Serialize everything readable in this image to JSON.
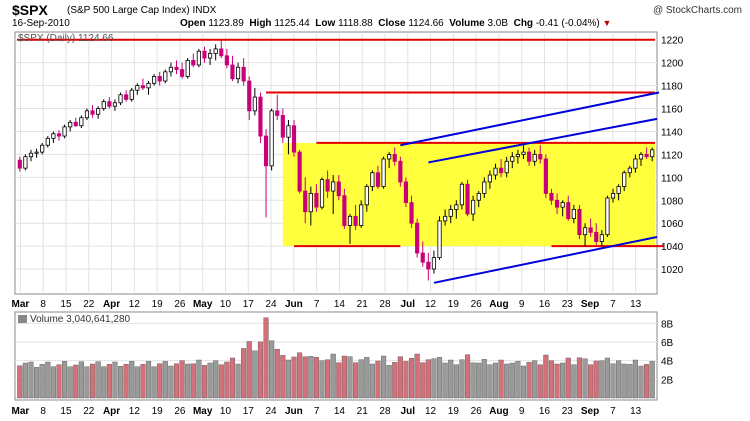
{
  "header": {
    "symbol": "$SPX",
    "name": "(S&P 500 Large Cap Index)",
    "exchange": "INDX",
    "date": "16-Sep-2010",
    "watermark": "@ StockCharts.com",
    "open_label": "Open",
    "open": "1123.89",
    "high_label": "High",
    "high": "1125.44",
    "low_label": "Low",
    "low": "1118.88",
    "close_label": "Close",
    "close": "1124.66",
    "volume_label": "Volume",
    "volume": "3.0B",
    "chg_label": "Chg",
    "chg": "-0.41 (-0.04%)",
    "chg_icon": "down-triangle-icon"
  },
  "chart_data": [
    {
      "type": "candlestick",
      "legend": "$SPX (Daily) 1124.66",
      "ylim": [
        1000,
        1225
      ],
      "yticks": [
        1020,
        1040,
        1060,
        1080,
        1100,
        1120,
        1140,
        1160,
        1180,
        1200,
        1220
      ],
      "xticks": [
        "Mar",
        "8",
        "15",
        "22",
        "Apr",
        "12",
        "19",
        "26",
        "May",
        "10",
        "17",
        "24",
        "Jun",
        "7",
        "14",
        "21",
        "28",
        "Jul",
        "12",
        "19",
        "26",
        "Aug",
        "9",
        "16",
        "23",
        "Sep",
        "7",
        "13"
      ],
      "ohlc": [
        [
          1115,
          1118,
          1105,
          1108
        ],
        [
          1108,
          1120,
          1106,
          1118
        ],
        [
          1118,
          1124,
          1114,
          1121
        ],
        [
          1121,
          1125,
          1117,
          1122
        ],
        [
          1122,
          1130,
          1120,
          1128
        ],
        [
          1128,
          1136,
          1126,
          1134
        ],
        [
          1134,
          1140,
          1130,
          1138
        ],
        [
          1138,
          1141,
          1132,
          1136
        ],
        [
          1136,
          1146,
          1134,
          1144
        ],
        [
          1144,
          1150,
          1140,
          1148
        ],
        [
          1148,
          1152,
          1144,
          1145
        ],
        [
          1145,
          1154,
          1143,
          1152
        ],
        [
          1152,
          1160,
          1150,
          1158
        ],
        [
          1158,
          1163,
          1152,
          1155
        ],
        [
          1155,
          1162,
          1151,
          1160
        ],
        [
          1160,
          1168,
          1158,
          1166
        ],
        [
          1166,
          1170,
          1160,
          1162
        ],
        [
          1162,
          1168,
          1158,
          1165
        ],
        [
          1165,
          1174,
          1163,
          1172
        ],
        [
          1172,
          1176,
          1166,
          1168
        ],
        [
          1168,
          1178,
          1166,
          1176
        ],
        [
          1176,
          1182,
          1172,
          1180
        ],
        [
          1180,
          1186,
          1176,
          1178
        ],
        [
          1178,
          1184,
          1172,
          1182
        ],
        [
          1182,
          1190,
          1180,
          1188
        ],
        [
          1188,
          1192,
          1180,
          1184
        ],
        [
          1184,
          1194,
          1182,
          1192
        ],
        [
          1192,
          1200,
          1188,
          1196
        ],
        [
          1196,
          1202,
          1190,
          1194
        ],
        [
          1194,
          1200,
          1186,
          1188
        ],
        [
          1188,
          1204,
          1186,
          1202
        ],
        [
          1202,
          1208,
          1196,
          1198
        ],
        [
          1198,
          1212,
          1196,
          1210
        ],
        [
          1210,
          1214,
          1200,
          1204
        ],
        [
          1204,
          1212,
          1198,
          1208
        ],
        [
          1208,
          1216,
          1202,
          1212
        ],
        [
          1212,
          1220,
          1204,
          1206
        ],
        [
          1206,
          1212,
          1195,
          1198
        ],
        [
          1198,
          1206,
          1184,
          1186
        ],
        [
          1186,
          1200,
          1182,
          1196
        ],
        [
          1196,
          1204,
          1180,
          1184
        ],
        [
          1184,
          1188,
          1150,
          1158
        ],
        [
          1158,
          1178,
          1154,
          1170
        ],
        [
          1170,
          1174,
          1130,
          1136
        ],
        [
          1136,
          1142,
          1065,
          1110
        ],
        [
          1110,
          1160,
          1106,
          1158
        ],
        [
          1158,
          1172,
          1150,
          1154
        ],
        [
          1154,
          1160,
          1130,
          1135
        ],
        [
          1135,
          1150,
          1120,
          1145
        ],
        [
          1145,
          1150,
          1118,
          1122
        ],
        [
          1122,
          1124,
          1086,
          1088
        ],
        [
          1088,
          1100,
          1060,
          1070
        ],
        [
          1070,
          1092,
          1058,
          1086
        ],
        [
          1086,
          1094,
          1070,
          1074
        ],
        [
          1074,
          1100,
          1072,
          1098
        ],
        [
          1098,
          1106,
          1082,
          1088
        ],
        [
          1088,
          1102,
          1068,
          1096
        ],
        [
          1096,
          1102,
          1080,
          1084
        ],
        [
          1084,
          1090,
          1055,
          1058
        ],
        [
          1058,
          1068,
          1042,
          1066
        ],
        [
          1066,
          1076,
          1054,
          1058
        ],
        [
          1058,
          1080,
          1056,
          1076
        ],
        [
          1076,
          1094,
          1070,
          1092
        ],
        [
          1092,
          1106,
          1088,
          1104
        ],
        [
          1104,
          1110,
          1090,
          1092
        ],
        [
          1092,
          1118,
          1090,
          1116
        ],
        [
          1116,
          1122,
          1108,
          1120
        ],
        [
          1120,
          1126,
          1110,
          1114
        ],
        [
          1114,
          1118,
          1092,
          1096
        ],
        [
          1096,
          1100,
          1074,
          1078
        ],
        [
          1078,
          1084,
          1056,
          1060
        ],
        [
          1060,
          1064,
          1030,
          1034
        ],
        [
          1034,
          1044,
          1022,
          1026
        ],
        [
          1026,
          1034,
          1010,
          1020
        ],
        [
          1020,
          1036,
          1016,
          1030
        ],
        [
          1030,
          1066,
          1028,
          1062
        ],
        [
          1062,
          1072,
          1058,
          1066
        ],
        [
          1066,
          1076,
          1060,
          1072
        ],
        [
          1072,
          1080,
          1064,
          1076
        ],
        [
          1076,
          1096,
          1072,
          1094
        ],
        [
          1094,
          1098,
          1066,
          1068
        ],
        [
          1068,
          1084,
          1062,
          1080
        ],
        [
          1080,
          1088,
          1074,
          1086
        ],
        [
          1086,
          1100,
          1082,
          1096
        ],
        [
          1096,
          1106,
          1090,
          1102
        ],
        [
          1102,
          1112,
          1098,
          1108
        ],
        [
          1108,
          1116,
          1100,
          1104
        ],
        [
          1104,
          1118,
          1100,
          1114
        ],
        [
          1114,
          1122,
          1108,
          1118
        ],
        [
          1118,
          1124,
          1112,
          1120
        ],
        [
          1120,
          1128,
          1116,
          1122
        ],
        [
          1122,
          1126,
          1110,
          1114
        ],
        [
          1114,
          1124,
          1110,
          1120
        ],
        [
          1120,
          1128,
          1112,
          1116
        ],
        [
          1116,
          1120,
          1082,
          1086
        ],
        [
          1086,
          1090,
          1076,
          1080
        ],
        [
          1080,
          1086,
          1068,
          1074
        ],
        [
          1074,
          1080,
          1066,
          1078
        ],
        [
          1078,
          1084,
          1062,
          1064
        ],
        [
          1064,
          1076,
          1060,
          1072
        ],
        [
          1072,
          1076,
          1046,
          1050
        ],
        [
          1050,
          1060,
          1040,
          1056
        ],
        [
          1056,
          1064,
          1048,
          1052
        ],
        [
          1052,
          1060,
          1040,
          1044
        ],
        [
          1044,
          1054,
          1040,
          1050
        ],
        [
          1050,
          1084,
          1048,
          1082
        ],
        [
          1082,
          1090,
          1078,
          1086
        ],
        [
          1086,
          1094,
          1080,
          1092
        ],
        [
          1092,
          1106,
          1088,
          1104
        ],
        [
          1104,
          1110,
          1100,
          1108
        ],
        [
          1108,
          1120,
          1104,
          1116
        ],
        [
          1116,
          1122,
          1110,
          1120
        ],
        [
          1120,
          1126,
          1116,
          1118
        ],
        [
          1118,
          1126,
          1114,
          1124
        ]
      ],
      "annotations": {
        "red_horizontal_lines": [
          1220,
          1174,
          1130,
          1040
        ],
        "blue_trendlines": "three rising lines (upper, middle, lower channel)",
        "highlight": "yellow rectangle between 1040 and 1130"
      }
    },
    {
      "type": "bar",
      "legend": "Volume 3,040,641,280",
      "ylim": [
        0,
        9
      ],
      "ytick_labels": [
        "2B",
        "4B",
        "6B",
        "8B"
      ],
      "yticks": [
        2,
        4,
        6,
        8
      ],
      "xticks": [
        "Mar",
        "8",
        "15",
        "22",
        "Apr",
        "12",
        "19",
        "26",
        "May",
        "10",
        "17",
        "24",
        "Jun",
        "7",
        "14",
        "21",
        "28",
        "Jul",
        "12",
        "19",
        "26",
        "Aug",
        "9",
        "16",
        "23",
        "Sep",
        "7",
        "13"
      ]
    }
  ]
}
